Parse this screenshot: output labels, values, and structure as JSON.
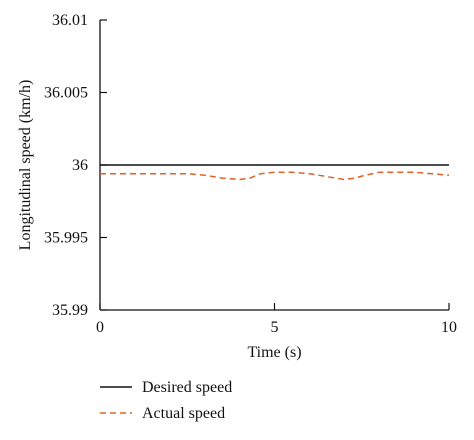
{
  "chart_data": {
    "type": "line",
    "xlabel": "Time (s)",
    "ylabel": "Longitudinal speed (km/h)",
    "xlim": [
      0,
      10
    ],
    "ylim": [
      35.99,
      36.01
    ],
    "xticks": [
      "0",
      "5",
      "10"
    ],
    "yticks": [
      "35.99",
      "35.995",
      "36",
      "36.005",
      "36.01"
    ],
    "grid": false,
    "legend_position": "bottom",
    "series": [
      {
        "name": "Desired speed",
        "style": "solid",
        "color": "#111111",
        "x": [
          0,
          10
        ],
        "y": [
          36.0,
          36.0
        ]
      },
      {
        "name": "Actual speed",
        "style": "dashed",
        "color": "#e0622a",
        "x": [
          0,
          0.5,
          1,
          1.5,
          2,
          2.5,
          3,
          3.5,
          4,
          4.3,
          4.6,
          5,
          5.5,
          6,
          6.5,
          7,
          7.3,
          7.6,
          8,
          8.5,
          9,
          9.5,
          10
        ],
        "y": [
          35.9994,
          35.9994,
          35.9994,
          35.9994,
          35.9994,
          35.9994,
          35.9993,
          35.9991,
          35.999,
          35.9991,
          35.9994,
          35.9995,
          35.9995,
          35.9994,
          35.9992,
          35.999,
          35.9991,
          35.9993,
          35.9995,
          35.9995,
          35.9995,
          35.9994,
          35.9993
        ]
      }
    ]
  }
}
